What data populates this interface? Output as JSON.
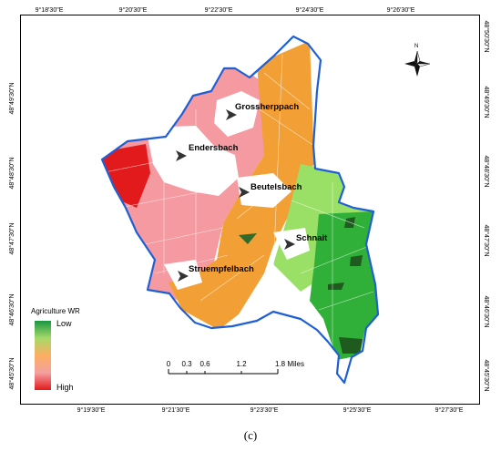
{
  "graticule": {
    "top": [
      "9°18'30\"E",
      "9°20'30\"E",
      "9°22'30\"E",
      "9°24'30\"E",
      "9°26'30\"E"
    ],
    "bottom": [
      "9°19'30\"E",
      "9°21'30\"E",
      "9°23'30\"E",
      "9°25'30\"E",
      "9°27'30\"E"
    ],
    "left": [
      "48°49'30\"N",
      "48°48'30\"N",
      "48°47'30\"N",
      "48°46'30\"N",
      "48°45'30\"N"
    ],
    "right": [
      "48°50'30\"N",
      "48°49'30\"N",
      "48°48'30\"N",
      "48°47'30\"N",
      "48°46'30\"N",
      "48°45'30\"N"
    ]
  },
  "places": {
    "grossherppach": "Grossherppach",
    "endersbach": "Endersbach",
    "beutelsbach": "Beutelsbach",
    "schnait": "Schnait",
    "struempfelbach": "Struempfelbach"
  },
  "legend": {
    "title": "Agriculture WR",
    "low": "Low",
    "high": "High",
    "colors": [
      "#1a9641",
      "#a6d96a",
      "#fdae61",
      "#f4a0a0",
      "#e31a1c"
    ]
  },
  "scale_bar": {
    "labels": [
      "0",
      "0.3",
      "0.6",
      "1.2",
      "1.8 Miles"
    ]
  },
  "north_arrow": {
    "label": "N"
  },
  "boundary_color": "#1f5fd6",
  "caption": "(c)"
}
